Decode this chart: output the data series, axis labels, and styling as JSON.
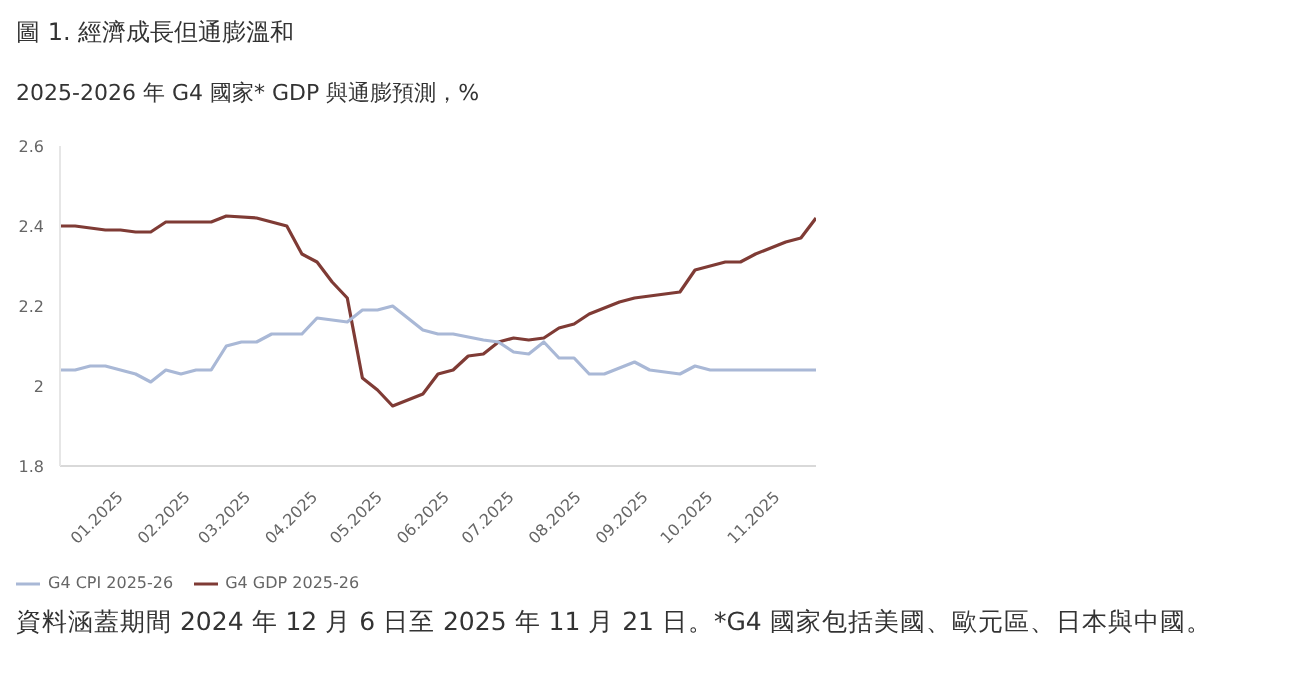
{
  "chart_data": {
    "type": "line",
    "title": "圖 1. 經濟成長但通膨溫和",
    "subtitle": "2025-2026 年 G4 國家* GDP 與通膨預測，%",
    "annotations": [
      "資料涵蓋期間 2024 年 12 月 6 日至 2025 年 11 月 21 日。*G4 國家包括美國、歐元區、日本與中國。"
    ],
    "xlim": [
      "2024-12-06",
      "2025-11-21"
    ],
    "xticks": [
      {
        "value": "2025-01-01",
        "label": "01.2025"
      },
      {
        "value": "2025-02-01",
        "label": "02.2025"
      },
      {
        "value": "2025-03-01",
        "label": "03.2025"
      },
      {
        "value": "2025-04-01",
        "label": "04.2025"
      },
      {
        "value": "2025-05-01",
        "label": "05.2025"
      },
      {
        "value": "2025-06-01",
        "label": "06.2025"
      },
      {
        "value": "2025-07-01",
        "label": "07.2025"
      },
      {
        "value": "2025-08-01",
        "label": "08.2025"
      },
      {
        "value": "2025-09-01",
        "label": "09.2025"
      },
      {
        "value": "2025-10-01",
        "label": "10.2025"
      },
      {
        "value": "2025-11-01",
        "label": "11.2025"
      }
    ],
    "ylim": [
      1.8,
      2.6
    ],
    "yticks": [
      1.8,
      2,
      2.2,
      2.4,
      2.6
    ],
    "legend": "bottom left",
    "line_style": "solid",
    "series": [
      {
        "name": "G4 GDP 2025-26",
        "color": "#7f3b35",
        "x": [
          "2024-12-06",
          "2024-12-13",
          "2024-12-27",
          "2025-01-03",
          "2025-01-10",
          "2025-01-17",
          "2025-01-24",
          "2025-02-14",
          "2025-02-21",
          "2025-03-07",
          "2025-03-21",
          "2025-03-28",
          "2025-04-04",
          "2025-04-11",
          "2025-04-18",
          "2025-04-25",
          "2025-05-02",
          "2025-05-09",
          "2025-05-23",
          "2025-05-30",
          "2025-06-06",
          "2025-06-13",
          "2025-06-20",
          "2025-06-27",
          "2025-07-04",
          "2025-07-11",
          "2025-07-18",
          "2025-07-25",
          "2025-08-01",
          "2025-08-08",
          "2025-08-22",
          "2025-08-29",
          "2025-09-12",
          "2025-09-19",
          "2025-09-26",
          "2025-10-10",
          "2025-10-17",
          "2025-10-24",
          "2025-11-07",
          "2025-11-14",
          "2025-11-21"
        ],
        "values": [
          2.4,
          2.4,
          2.39,
          2.39,
          2.385,
          2.385,
          2.41,
          2.41,
          2.425,
          2.42,
          2.4,
          2.33,
          2.31,
          2.26,
          2.22,
          2.02,
          1.99,
          1.95,
          1.98,
          2.03,
          2.04,
          2.075,
          2.08,
          2.11,
          2.12,
          2.115,
          2.12,
          2.145,
          2.155,
          2.18,
          2.21,
          2.22,
          2.23,
          2.235,
          2.29,
          2.31,
          2.31,
          2.33,
          2.36,
          2.37,
          2.42
        ]
      },
      {
        "name": "G4 CPI 2025-26",
        "color": "#a9b8d6",
        "x": [
          "2024-12-06",
          "2024-12-13",
          "2024-12-20",
          "2024-12-27",
          "2025-01-10",
          "2025-01-17",
          "2025-01-24",
          "2025-01-31",
          "2025-02-07",
          "2025-02-14",
          "2025-02-21",
          "2025-02-28",
          "2025-03-07",
          "2025-03-14",
          "2025-03-28",
          "2025-04-04",
          "2025-04-18",
          "2025-04-25",
          "2025-05-02",
          "2025-05-09",
          "2025-05-23",
          "2025-05-30",
          "2025-06-06",
          "2025-06-20",
          "2025-06-27",
          "2025-07-04",
          "2025-07-11",
          "2025-07-18",
          "2025-07-25",
          "2025-08-01",
          "2025-08-08",
          "2025-08-15",
          "2025-08-29",
          "2025-09-05",
          "2025-09-19",
          "2025-09-26",
          "2025-10-03",
          "2025-11-21"
        ],
        "values": [
          2.04,
          2.04,
          2.05,
          2.05,
          2.03,
          2.01,
          2.04,
          2.03,
          2.04,
          2.04,
          2.1,
          2.11,
          2.11,
          2.13,
          2.13,
          2.17,
          2.16,
          2.19,
          2.19,
          2.2,
          2.14,
          2.13,
          2.13,
          2.115,
          2.11,
          2.085,
          2.08,
          2.11,
          2.07,
          2.07,
          2.03,
          2.03,
          2.06,
          2.04,
          2.03,
          2.05,
          2.04,
          2.04
        ]
      }
    ]
  }
}
